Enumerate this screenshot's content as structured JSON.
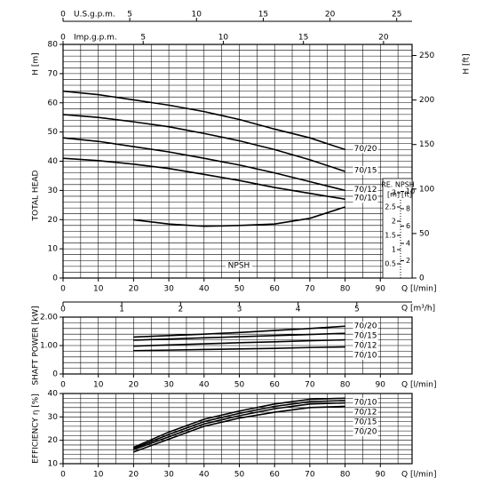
{
  "chart_data": [
    {
      "type": "line",
      "y_title_top": "H [m]",
      "ylabel": "TOTAL HEAD",
      "y2label": "H [ft]",
      "xlabel": "Q [l/min]",
      "xlim": [
        0,
        99
      ],
      "xticks": [
        0,
        10,
        20,
        30,
        40,
        50,
        60,
        70,
        80,
        90
      ],
      "ylim": [
        0,
        80
      ],
      "yticks": [
        0,
        10,
        20,
        30,
        40,
        50,
        60,
        70,
        80
      ],
      "y2lim": [
        0,
        262.5
      ],
      "y2ticks": [
        0,
        50,
        100,
        150,
        200,
        250
      ],
      "xgrid": [
        5,
        10,
        15,
        20,
        25,
        30,
        35,
        40,
        45,
        50,
        55,
        60,
        65,
        70,
        75,
        80,
        85,
        90,
        95
      ],
      "ygrid": [
        2,
        4,
        6,
        8,
        10,
        12,
        14,
        16,
        18,
        20,
        22,
        24,
        26,
        28,
        30,
        32,
        34,
        36,
        38,
        40,
        42,
        44,
        46,
        48,
        50,
        52,
        54,
        56,
        58,
        60,
        62,
        64,
        66,
        68,
        70,
        72,
        74,
        76,
        78
      ],
      "x_axes": [
        {
          "label": "U.S.g.p.m.",
          "lim": [
            0,
            26.15
          ],
          "ticks": [
            0,
            5,
            10,
            15,
            20,
            25
          ]
        },
        {
          "label": "Imp.g.p.m.",
          "lim": [
            0,
            21.78
          ],
          "ticks": [
            0,
            5,
            10,
            15,
            20
          ]
        },
        {
          "label": "Q [m³/h]",
          "lim": [
            0,
            5.94
          ],
          "ticks": [
            0,
            1,
            2,
            3,
            4,
            5
          ]
        }
      ],
      "npsh_title": "RE. NPSH",
      "npsh_units": [
        "[m]",
        "[ft]"
      ],
      "npshlim": [
        0,
        3.3
      ],
      "npshticks": [
        0.5,
        1,
        1.5,
        2,
        2.5,
        3
      ],
      "npsh_ft_lim": [
        0,
        10.83
      ],
      "npsh_ft_ticks": [
        2,
        4,
        6,
        8,
        10
      ],
      "x": [
        0,
        10,
        20,
        30,
        40,
        50,
        60,
        70,
        80
      ],
      "series": [
        {
          "name": "70/20",
          "color": "#000000",
          "values": [
            64,
            62.8,
            61,
            59.2,
            57,
            54.3,
            51,
            48,
            44
          ]
        },
        {
          "name": "70/15",
          "color": "#000000",
          "values": [
            56,
            55,
            53.5,
            51.8,
            49.5,
            47,
            44,
            40.5,
            36.5
          ]
        },
        {
          "name": "70/12",
          "color": "#000000",
          "values": [
            48,
            46.8,
            45,
            43.2,
            41,
            38.7,
            36,
            33,
            30
          ]
        },
        {
          "name": "70/10",
          "color": "#000000",
          "values": [
            41,
            40.2,
            39,
            37.5,
            35.5,
            33.4,
            31,
            29,
            27
          ]
        },
        {
          "name": "NPSH",
          "color": "#000000",
          "axis": "npsh",
          "x": [
            20,
            30,
            40,
            50,
            60,
            70,
            80
          ],
          "values": [
            2.05,
            1.9,
            1.82,
            1.85,
            1.9,
            2.1,
            2.5
          ]
        }
      ]
    },
    {
      "type": "line",
      "ylabel": "SHAFT POWER [kW]",
      "xlabel": "Q [l/min]",
      "xlim": [
        0,
        99
      ],
      "xticks": [
        0,
        10,
        20,
        30,
        40,
        50,
        60,
        70,
        80,
        90
      ],
      "ylim": [
        0,
        2
      ],
      "yticks": [
        0,
        {
          "value": 1,
          "label": "1.00"
        },
        {
          "value": 2,
          "label": "2.00"
        }
      ],
      "xgrid": [
        5,
        10,
        15,
        20,
        25,
        30,
        35,
        40,
        45,
        50,
        55,
        60,
        65,
        70,
        75,
        80,
        85,
        90,
        95
      ],
      "ygrid": [
        0.2,
        0.4,
        0.6,
        0.8,
        1,
        1.2,
        1.4,
        1.6,
        1.8
      ],
      "x": [
        20,
        30,
        40,
        50,
        60,
        70,
        80
      ],
      "series": [
        {
          "name": "70/20",
          "color": "#000000",
          "values": [
            1.3,
            1.35,
            1.4,
            1.46,
            1.53,
            1.6,
            1.68
          ]
        },
        {
          "name": "70/15",
          "color": "#000000",
          "values": [
            1.19,
            1.23,
            1.27,
            1.31,
            1.35,
            1.39,
            1.43
          ]
        },
        {
          "name": "70/12",
          "color": "#000000",
          "values": [
            0.98,
            1.02,
            1.06,
            1.1,
            1.13,
            1.17,
            1.2
          ]
        },
        {
          "name": "70/10",
          "color": "#000000",
          "values": [
            0.82,
            0.84,
            0.86,
            0.88,
            0.9,
            0.93,
            0.95
          ]
        }
      ]
    },
    {
      "type": "line",
      "ylabel": "EFFICIENCY η [%]",
      "xlabel": "Q [l/min]",
      "xlim": [
        0,
        99
      ],
      "xticks": [
        0,
        10,
        20,
        30,
        40,
        50,
        60,
        70,
        80,
        90
      ],
      "ylim": [
        10,
        40
      ],
      "yticks": [
        10,
        20,
        30,
        40
      ],
      "xgrid": [
        5,
        10,
        15,
        20,
        25,
        30,
        35,
        40,
        45,
        50,
        55,
        60,
        65,
        70,
        75,
        80,
        85,
        90,
        95
      ],
      "ygrid": [
        12,
        14,
        16,
        18,
        20,
        22,
        24,
        26,
        28,
        30,
        32,
        34,
        36,
        38
      ],
      "x": [
        20,
        30,
        40,
        50,
        60,
        70,
        80
      ],
      "series": [
        {
          "name": "70/10",
          "color": "#000000",
          "values": [
            17,
            23.5,
            29,
            32.5,
            35.5,
            37.5,
            38
          ]
        },
        {
          "name": "70/12",
          "color": "#000000",
          "values": [
            16.5,
            22.5,
            28,
            31.5,
            34.5,
            36.5,
            37
          ]
        },
        {
          "name": "70/15",
          "color": "#000000",
          "values": [
            16,
            21.5,
            27,
            30.5,
            33.5,
            35.5,
            36
          ]
        },
        {
          "name": "70/20",
          "color": "#000000",
          "values": [
            15,
            20.5,
            26,
            29.5,
            32,
            34,
            34.5
          ]
        }
      ]
    }
  ]
}
